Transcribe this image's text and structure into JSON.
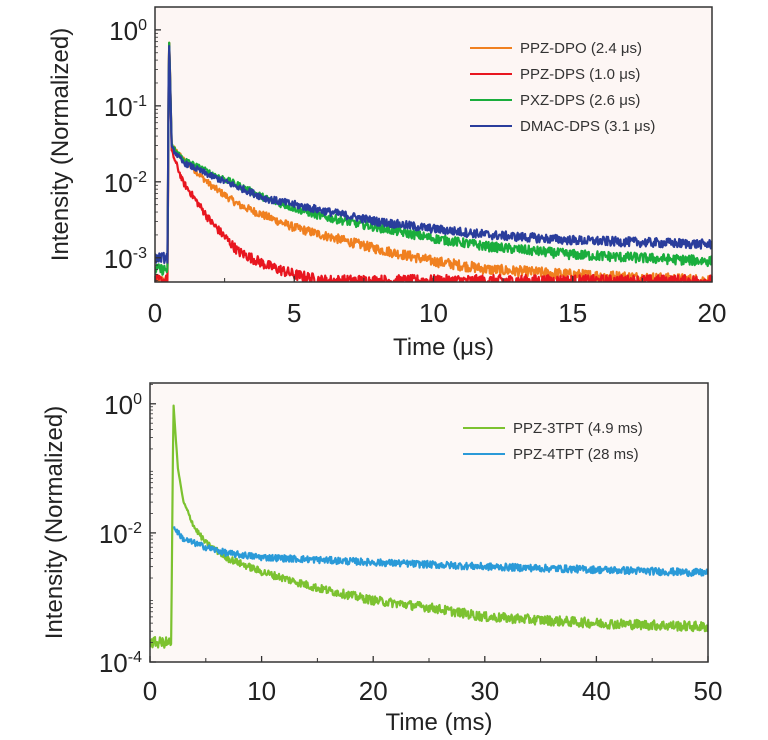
{
  "chart_data": [
    {
      "type": "line",
      "xlabel": "Time (μs)",
      "ylabel": "Intensity (Normalized)",
      "xlim": [
        0,
        20
      ],
      "ylim": [
        0.00048,
        2.0
      ],
      "yscale": "log",
      "x_ticks": [
        "0",
        "5",
        "10",
        "15",
        "20"
      ],
      "y_ticks": [
        {
          "base": "10",
          "exp": "0"
        },
        {
          "base": "10",
          "exp": "-1"
        },
        {
          "base": "10",
          "exp": "-2"
        },
        {
          "base": "10",
          "exp": "-3"
        }
      ],
      "legend_position": "top-right",
      "background": "#fdf6f4",
      "series": [
        {
          "name": "PPZ-DPO (2.4 μs)",
          "color": "#f08020",
          "x": [
            0,
            0.45,
            0.5,
            0.6,
            1,
            2,
            3,
            4,
            5,
            6,
            8,
            10,
            12,
            15,
            20
          ],
          "y": [
            0.0005,
            0.0005,
            1.0,
            0.03,
            0.02,
            0.009,
            0.005,
            0.0035,
            0.0025,
            0.002,
            0.0013,
            0.0009,
            0.0007,
            0.0006,
            0.0005
          ]
        },
        {
          "name": "PPZ-DPS (1.0 μs)",
          "color": "#e8161f",
          "x": [
            0,
            0.45,
            0.5,
            0.6,
            1,
            2,
            3,
            4,
            5,
            6,
            8,
            10,
            15,
            20
          ],
          "y": [
            0.0005,
            0.0005,
            1.0,
            0.025,
            0.01,
            0.003,
            0.0012,
            0.0008,
            0.0006,
            0.0005,
            0.0005,
            0.0005,
            0.0005,
            0.0005
          ]
        },
        {
          "name": "PXZ-DPS (2.6 μs)",
          "color": "#1aad3c",
          "x": [
            0,
            0.45,
            0.5,
            0.6,
            1,
            2,
            3,
            4,
            5,
            6,
            8,
            10,
            12,
            15,
            20
          ],
          "y": [
            0.0007,
            0.0007,
            1.0,
            0.03,
            0.02,
            0.013,
            0.009,
            0.006,
            0.0045,
            0.0035,
            0.0025,
            0.0018,
            0.0014,
            0.0011,
            0.0009
          ]
        },
        {
          "name": "DMAC-DPS (3.1 μs)",
          "color": "#2a3d9c",
          "x": [
            0,
            0.45,
            0.5,
            0.6,
            1,
            2,
            4,
            6,
            8,
            10,
            12,
            15,
            20
          ],
          "y": [
            0.001,
            0.001,
            0.9,
            0.028,
            0.018,
            0.012,
            0.006,
            0.0042,
            0.003,
            0.0024,
            0.002,
            0.0017,
            0.0015
          ]
        }
      ]
    },
    {
      "type": "line",
      "xlabel": "Time (ms)",
      "ylabel": "Intensity (Normalized)",
      "xlim": [
        0,
        50
      ],
      "ylim": [
        0.0001,
        2.1
      ],
      "yscale": "log",
      "x_ticks": [
        "0",
        "10",
        "20",
        "30",
        "40",
        "50"
      ],
      "y_ticks": [
        {
          "base": "10",
          "exp": "0"
        },
        {
          "base": "10",
          "exp": "-2"
        },
        {
          "base": "10",
          "exp": "-4"
        }
      ],
      "legend_position": "top-right",
      "background": "#fdf8f6",
      "series": [
        {
          "name": "PPZ-3TPT (4.9 ms)",
          "color": "#7cc230",
          "x": [
            0,
            1.9,
            2.1,
            2.5,
            3,
            4,
            5,
            7,
            10,
            15,
            20,
            25,
            30,
            40,
            50
          ],
          "y": [
            0.0002,
            0.0002,
            1.0,
            0.1,
            0.03,
            0.012,
            0.007,
            0.004,
            0.0025,
            0.0014,
            0.0009,
            0.0007,
            0.0005,
            0.0004,
            0.00035
          ]
        },
        {
          "name": "PPZ-4TPT (28 ms)",
          "color": "#2a9ad8",
          "x": [
            2.15,
            3,
            5,
            7,
            10,
            20,
            30,
            40,
            50
          ],
          "y": [
            0.012,
            0.008,
            0.006,
            0.0048,
            0.0042,
            0.0035,
            0.003,
            0.0027,
            0.0024
          ]
        }
      ]
    }
  ]
}
